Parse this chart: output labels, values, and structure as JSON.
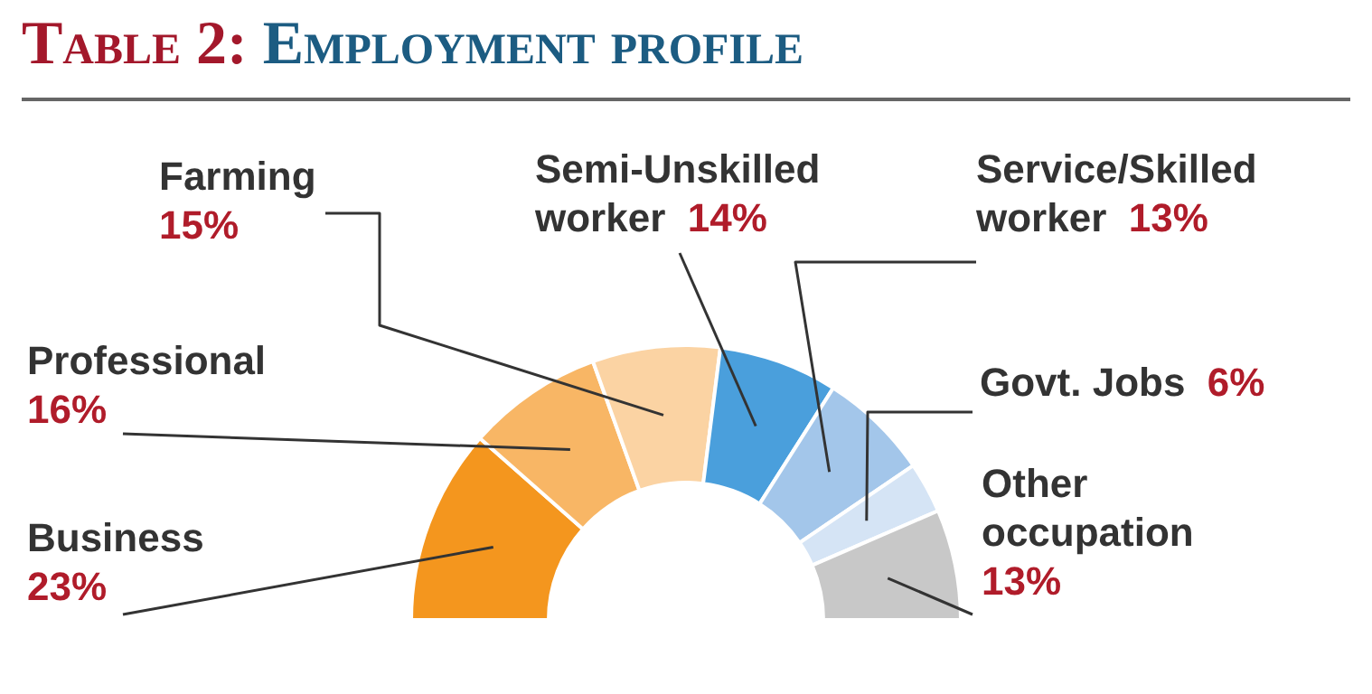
{
  "chart_data": {
    "type": "donut",
    "title": "Table 2: Employment profile",
    "categories": [
      "Business",
      "Professional",
      "Farming",
      "Semi-Unskilled worker",
      "Service/Skilled worker",
      "Govt. Jobs",
      "Other occupation"
    ],
    "values": [
      23,
      16,
      15,
      14,
      13,
      6,
      13
    ],
    "value_labels": [
      "23%",
      "16%",
      "15%",
      "14%",
      "13%",
      "6%",
      "13%"
    ],
    "colors": [
      "#f4961e",
      "#f8b665",
      "#fbd3a3",
      "#4a9fdc",
      "#a3c6ea",
      "#d5e4f5",
      "#c8c8c8"
    ],
    "legend": false
  }
}
